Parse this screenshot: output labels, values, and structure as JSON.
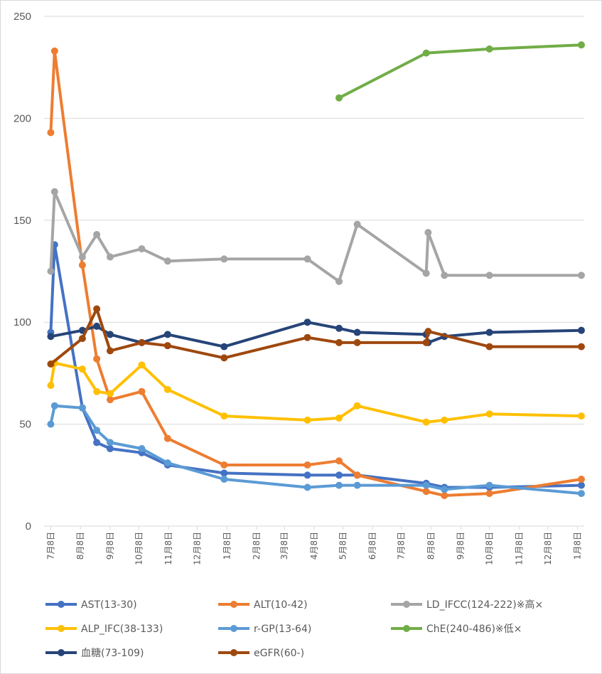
{
  "chart_data": {
    "type": "line",
    "title": "",
    "xlabel": "",
    "ylabel": "",
    "ylim": [
      0,
      250
    ],
    "yticks": [
      0,
      50,
      100,
      150,
      200,
      250
    ],
    "grid": true,
    "legend_position": "bottom",
    "x_axis": {
      "min": "2023-07-01",
      "max": "2025-01-15",
      "tick_labels": [
        "7月8日",
        "8月8日",
        "9月8日",
        "10月8日",
        "11月8日",
        "12月8日",
        "1月8日",
        "2月8日",
        "3月8日",
        "4月8日",
        "5月8日",
        "6月8日",
        "7月8日",
        "8月8日",
        "9月8日",
        "10月8日",
        "11月8日",
        "12月8日",
        "1月8日"
      ],
      "tick_dates": [
        "2023-07-08",
        "2023-08-08",
        "2023-09-08",
        "2023-10-08",
        "2023-11-08",
        "2023-12-08",
        "2024-01-08",
        "2024-02-08",
        "2024-03-08",
        "2024-04-08",
        "2024-05-08",
        "2024-06-08",
        "2024-07-08",
        "2024-08-08",
        "2024-09-08",
        "2024-10-08",
        "2024-11-08",
        "2024-12-08",
        "2025-01-08"
      ]
    },
    "series": [
      {
        "name": "AST(13-30)",
        "color": "#4472C4",
        "points": [
          [
            "2023-07-08",
            95
          ],
          [
            "2023-07-12",
            138
          ],
          [
            "2023-08-10",
            58
          ],
          [
            "2023-08-25",
            41
          ],
          [
            "2023-09-08",
            38
          ],
          [
            "2023-10-11",
            36
          ],
          [
            "2023-11-07",
            30
          ],
          [
            "2024-01-05",
            26
          ],
          [
            "2024-04-01",
            25
          ],
          [
            "2024-05-04",
            25
          ],
          [
            "2024-05-23",
            25
          ],
          [
            "2024-08-03",
            21
          ],
          [
            "2024-08-22",
            19
          ],
          [
            "2024-10-08",
            19
          ],
          [
            "2025-01-12",
            20
          ]
        ]
      },
      {
        "name": "ALT(10-42)",
        "color": "#ED7D31",
        "points": [
          [
            "2023-07-08",
            193
          ],
          [
            "2023-07-12",
            233
          ],
          [
            "2023-08-10",
            128
          ],
          [
            "2023-08-25",
            82
          ],
          [
            "2023-09-08",
            62
          ],
          [
            "2023-10-11",
            66
          ],
          [
            "2023-11-07",
            43
          ],
          [
            "2024-01-05",
            30
          ],
          [
            "2024-04-01",
            30
          ],
          [
            "2024-05-04",
            32
          ],
          [
            "2024-05-23",
            25
          ],
          [
            "2024-08-03",
            17
          ],
          [
            "2024-08-22",
            15
          ],
          [
            "2024-10-08",
            16
          ],
          [
            "2025-01-12",
            23
          ]
        ]
      },
      {
        "name": "LD_IFCC(124-222)※高×",
        "color": "#A5A5A5",
        "points": [
          [
            "2023-07-08",
            125
          ],
          [
            "2023-07-12",
            164
          ],
          [
            "2023-08-10",
            132
          ],
          [
            "2023-08-25",
            143
          ],
          [
            "2023-09-08",
            132
          ],
          [
            "2023-10-11",
            136
          ],
          [
            "2023-11-07",
            130
          ],
          [
            "2024-01-05",
            131
          ],
          [
            "2024-04-01",
            131
          ],
          [
            "2024-05-04",
            120
          ],
          [
            "2024-05-23",
            148
          ],
          [
            "2024-08-03",
            124
          ],
          [
            "2024-08-05",
            144
          ],
          [
            "2024-08-22",
            123
          ],
          [
            "2024-10-08",
            123
          ],
          [
            "2025-01-12",
            123
          ]
        ]
      },
      {
        "name": "ALP_IFC(38-133)",
        "color": "#FFC000",
        "points": [
          [
            "2023-07-08",
            69
          ],
          [
            "2023-07-12",
            80
          ],
          [
            "2023-08-10",
            77
          ],
          [
            "2023-08-25",
            66
          ],
          [
            "2023-09-08",
            65
          ],
          [
            "2023-10-11",
            79
          ],
          [
            "2023-11-07",
            67
          ],
          [
            "2024-01-05",
            54
          ],
          [
            "2024-04-01",
            52
          ],
          [
            "2024-05-04",
            53
          ],
          [
            "2024-05-23",
            59
          ],
          [
            "2024-08-03",
            51
          ],
          [
            "2024-08-22",
            52
          ],
          [
            "2024-10-08",
            55
          ],
          [
            "2025-01-12",
            54
          ]
        ]
      },
      {
        "name": "r-GP(13-64)",
        "color": "#5B9BD5",
        "points": [
          [
            "2023-07-08",
            50
          ],
          [
            "2023-07-12",
            59
          ],
          [
            "2023-08-10",
            58
          ],
          [
            "2023-08-25",
            47
          ],
          [
            "2023-09-08",
            41
          ],
          [
            "2023-10-11",
            38
          ],
          [
            "2023-11-07",
            31
          ],
          [
            "2024-01-05",
            23
          ],
          [
            "2024-04-01",
            19
          ],
          [
            "2024-05-04",
            20
          ],
          [
            "2024-05-23",
            20
          ],
          [
            "2024-08-03",
            20
          ],
          [
            "2024-08-22",
            18
          ],
          [
            "2024-10-08",
            20
          ],
          [
            "2025-01-12",
            16
          ]
        ]
      },
      {
        "name": "ChE(240-486)※低×",
        "color": "#70AD47",
        "points": [
          [
            "2024-05-04",
            210
          ],
          [
            "2024-08-03",
            232
          ],
          [
            "2024-10-08",
            234
          ],
          [
            "2025-01-12",
            236
          ]
        ]
      },
      {
        "name": "血糖(73-109)",
        "color": "#264478",
        "points": [
          [
            "2023-07-08",
            93
          ],
          [
            "2023-08-10",
            96
          ],
          [
            "2023-08-25",
            98
          ],
          [
            "2023-09-08",
            94
          ],
          [
            "2023-10-11",
            90
          ],
          [
            "2023-11-07",
            94
          ],
          [
            "2024-01-05",
            88
          ],
          [
            "2024-04-01",
            100
          ],
          [
            "2024-05-04",
            97
          ],
          [
            "2024-05-23",
            95
          ],
          [
            "2024-08-03",
            94
          ],
          [
            "2024-08-05",
            90
          ],
          [
            "2024-08-22",
            93
          ],
          [
            "2024-10-08",
            95
          ],
          [
            "2025-01-12",
            96
          ]
        ]
      },
      {
        "name": "eGFR(60-)",
        "color": "#9E480E",
        "points": [
          [
            "2023-07-08",
            79.5
          ],
          [
            "2023-08-10",
            92
          ],
          [
            "2023-08-25",
            106.5
          ],
          [
            "2023-09-08",
            86
          ],
          [
            "2023-10-11",
            90
          ],
          [
            "2023-11-07",
            88.5
          ],
          [
            "2024-01-05",
            82.5
          ],
          [
            "2024-04-01",
            92.5
          ],
          [
            "2024-05-04",
            90
          ],
          [
            "2024-05-23",
            90
          ],
          [
            "2024-08-03",
            90
          ],
          [
            "2024-08-05",
            95.5
          ],
          [
            "2024-10-08",
            88
          ],
          [
            "2025-01-12",
            88
          ]
        ]
      }
    ]
  }
}
